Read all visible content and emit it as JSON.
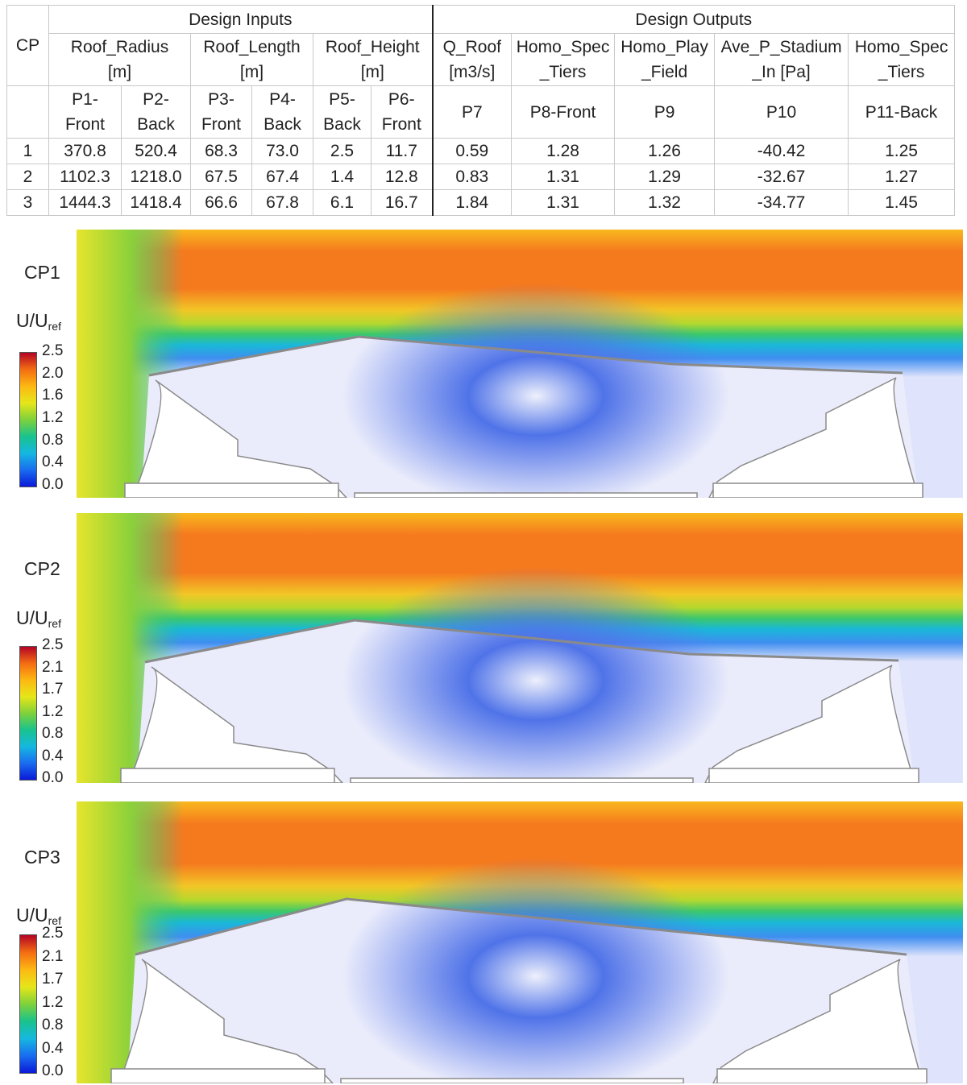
{
  "table": {
    "corner_label": "CP",
    "group_inputs": "Design Inputs",
    "group_outputs": "Design Outputs",
    "param_names": [
      [
        "Roof_Radius",
        "[m]"
      ],
      [
        "Roof_Length",
        "[m]"
      ],
      [
        "Roof_Height",
        "[m]"
      ],
      [
        "Q_Roof",
        "[m3/s]"
      ],
      [
        "Homo_Spec",
        "_Tiers"
      ],
      [
        "Homo_Play",
        "_Field"
      ],
      [
        "Ave_P_Stadium",
        "_In [Pa]"
      ],
      [
        "Homo_Spec",
        "_Tiers"
      ]
    ],
    "param_ids": [
      [
        "P1-",
        "Front"
      ],
      [
        "P2-",
        "Back"
      ],
      [
        "P3-",
        "Front"
      ],
      [
        "P4-",
        "Back"
      ],
      [
        "P5-",
        "Back"
      ],
      [
        "P6-",
        "Front"
      ],
      [
        "P7",
        ""
      ],
      [
        "P8-Front",
        ""
      ],
      [
        "P9",
        ""
      ],
      [
        "P10",
        ""
      ],
      [
        "P11-Back",
        ""
      ]
    ],
    "rows": [
      [
        "1",
        "370.8",
        "520.4",
        "68.3",
        "73.0",
        "2.5",
        "11.7",
        "0.59",
        "1.28",
        "1.26",
        "-40.42",
        "1.25"
      ],
      [
        "2",
        "1102.3",
        "1218.0",
        "67.5",
        "67.4",
        "1.4",
        "12.8",
        "0.83",
        "1.31",
        "1.29",
        "-32.67",
        "1.27"
      ],
      [
        "3",
        "1444.3",
        "1418.4",
        "66.6",
        "67.8",
        "6.1",
        "16.7",
        "1.84",
        "1.31",
        "1.32",
        "-34.77",
        "1.45"
      ]
    ]
  },
  "panels": [
    {
      "label": "CP1",
      "unit_main": "U/U",
      "unit_sub": "ref",
      "ticks": [
        "2.5",
        "2.0",
        "1.6",
        "1.2",
        "0.8",
        "0.4",
        "0.0"
      ]
    },
    {
      "label": "CP2",
      "unit_main": "U/U",
      "unit_sub": "ref",
      "ticks": [
        "2.5",
        "2.1",
        "1.7",
        "1.2",
        "0.8",
        "0.4",
        "0.0"
      ]
    },
    {
      "label": "CP3",
      "unit_main": "U/U",
      "unit_sub": "ref",
      "ticks": [
        "2.5",
        "2.1",
        "1.7",
        "1.2",
        "0.8",
        "0.4",
        "0.0"
      ]
    }
  ],
  "colormap": [
    "#b40426",
    "#f46d12",
    "#fdb813",
    "#e6e619",
    "#7fd13b",
    "#19c38c",
    "#15b8e0",
    "#1a6df0",
    "#0a1ad8"
  ],
  "field_colors": {
    "free_stream_high": "#f57a1e",
    "free_stream_mid": "#f9b81e",
    "wake_light": "#dfe3fb",
    "wake_blue": "#4f73e8",
    "interior": "#eaecfb",
    "structure": "#ffffff",
    "outline": "#8a8a8a"
  }
}
